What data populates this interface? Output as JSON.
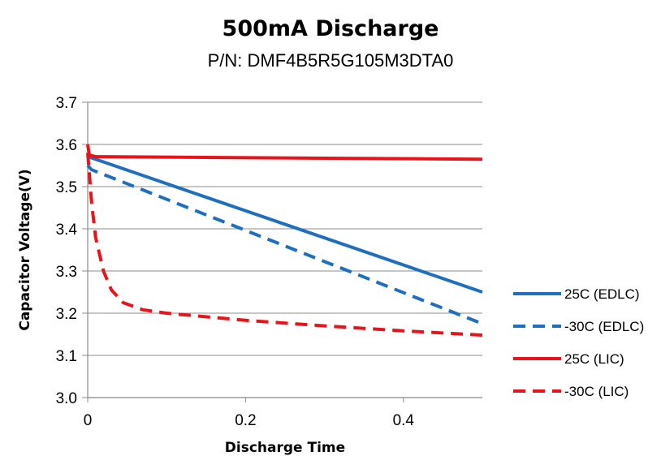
{
  "chart_data": {
    "type": "line",
    "title": "500mA Discharge",
    "subtitle": "P/N: DMF4B5R5G105M3DTA0",
    "xlabel": "Discharge Time",
    "ylabel": "Capacitor Voltage(V)",
    "xlim": [
      0,
      0.5
    ],
    "ylim": [
      3.0,
      3.7
    ],
    "x_ticks": [
      "0",
      "0.2",
      "0.4"
    ],
    "y_ticks": [
      "3.0",
      "3.1",
      "3.2",
      "3.3",
      "3.4",
      "3.5",
      "3.6",
      "3.7"
    ],
    "grid": "horizontal",
    "legend_position": "right",
    "series": [
      {
        "name": "25C (EDLC)",
        "color": "#1f6fbf",
        "style": "solid",
        "points": [
          [
            0.0,
            3.57
          ],
          [
            0.005,
            3.568
          ],
          [
            0.5,
            3.25
          ]
        ]
      },
      {
        "name": "-30C (EDLC)",
        "color": "#1f6fbf",
        "style": "dashed",
        "points": [
          [
            0.0,
            3.55
          ],
          [
            0.005,
            3.54
          ],
          [
            0.5,
            3.175
          ]
        ]
      },
      {
        "name": "25C (LIC)",
        "color": "#e8141b",
        "style": "solid",
        "points": [
          [
            0.0,
            3.6
          ],
          [
            0.002,
            3.575
          ],
          [
            0.01,
            3.571
          ],
          [
            0.5,
            3.565
          ]
        ]
      },
      {
        "name": "-30C (LIC)",
        "color": "#e8141b",
        "style": "dashed",
        "points": [
          [
            0.0,
            3.58
          ],
          [
            0.005,
            3.46
          ],
          [
            0.01,
            3.38
          ],
          [
            0.02,
            3.3
          ],
          [
            0.03,
            3.255
          ],
          [
            0.045,
            3.225
          ],
          [
            0.07,
            3.208
          ],
          [
            0.1,
            3.2
          ],
          [
            0.2,
            3.183
          ],
          [
            0.3,
            3.17
          ],
          [
            0.4,
            3.158
          ],
          [
            0.5,
            3.148
          ]
        ]
      }
    ]
  }
}
